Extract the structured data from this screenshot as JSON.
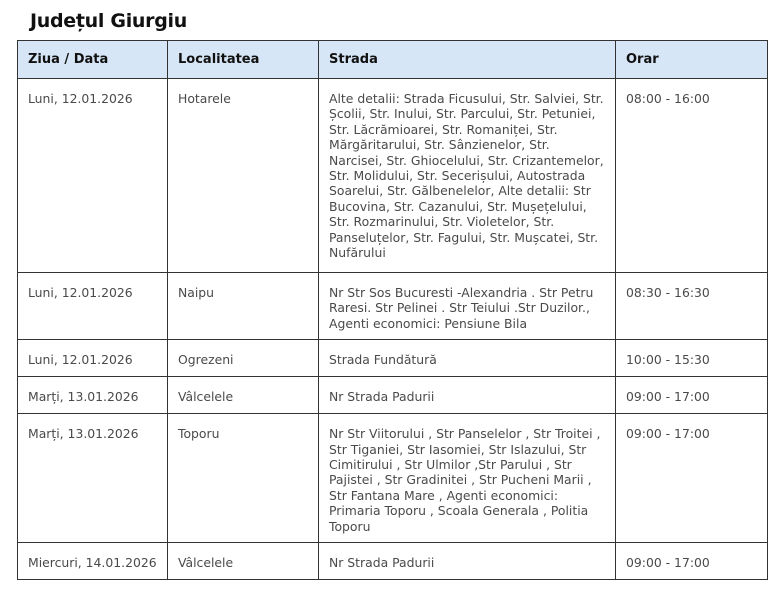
{
  "title": "Județul Giurgiu",
  "columns": [
    "Ziua / Data",
    "Localitatea",
    "Strada",
    "Orar"
  ],
  "rows": [
    {
      "date": "Luni, 12.01.2026",
      "locality": "Hotarele",
      "street": "Alte detalii: Strada Ficusului, Str. Salviei, Str. Școlii, Str. Inului, Str. Parcului, Str. Petuniei, Str. Lăcrămioarei, Str. Romaniței, Str. Mărgăritarului, Str. Sânzienelor, Str. Narcisei, Str. Ghiocelului, Str. Crizantemelor, Str. Molidului, Str. Secerișului, Autostrada Soarelui, Str. Gălbenelelor, Alte detalii: Str Bucovina, Str. Cazanului, Str. Mușețelului, Str. Rozmarinului, Str. Violetelor, Str. Panseluțelor, Str. Fagului, Str. Mușcatei, Str. Nufărului",
      "hours": "08:00 - 16:00"
    },
    {
      "date": "Luni, 12.01.2026",
      "locality": "Naipu",
      "street": "Nr Str Sos Bucuresti -Alexandria . Str Petru Raresi. Str Pelinei . Str Teiului .Str Duzilor., Agenti economici: Pensiune Bila",
      "hours": "08:30 - 16:30"
    },
    {
      "date": "Luni, 12.01.2026",
      "locality": "Ogrezeni",
      "street": "Strada Fundătură",
      "hours": "10:00 - 15:30"
    },
    {
      "date": "Marți, 13.01.2026",
      "locality": "Vâlcelele",
      "street": "Nr Strada Padurii",
      "hours": "09:00 - 17:00"
    },
    {
      "date": "Marți, 13.01.2026",
      "locality": "Toporu",
      "street": "Nr Str Viitorului , Str Panselelor , Str Troitei , Str Tiganiei, Str Iasomiei, Str Islazului, Str Cimitirului , Str Ulmilor ,Str Parului , Str Pajistei , Str Gradinitei , Str Pucheni Marii , Str Fantana Mare , Agenti economici: Primaria Toporu , Scoala Generala , Politia Toporu",
      "hours": "09:00 - 17:00"
    },
    {
      "date": "Miercuri, 14.01.2026",
      "locality": "Vâlcelele",
      "street": "Nr Strada Padurii",
      "hours": "09:00 - 17:00"
    }
  ]
}
